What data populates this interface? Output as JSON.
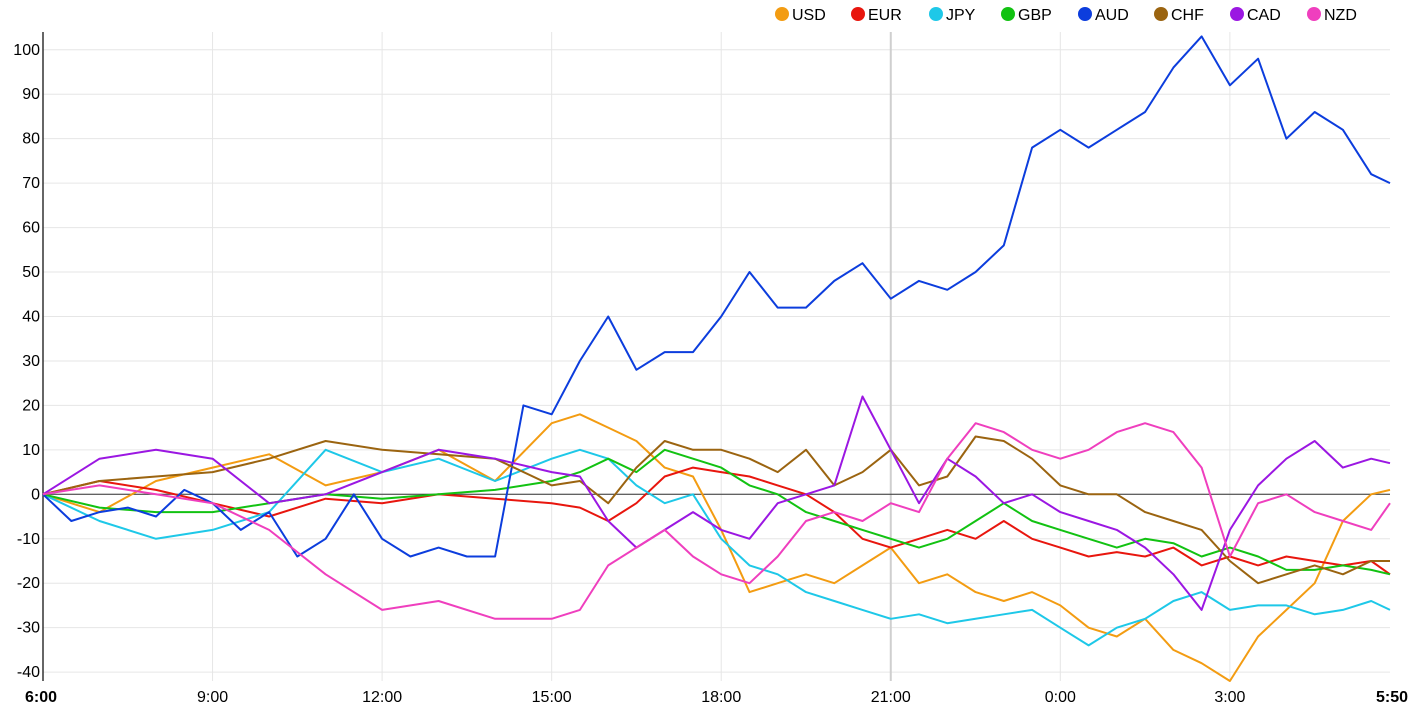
{
  "chart_data": {
    "type": "line",
    "title": "",
    "xlabel": "",
    "ylabel": "",
    "ylim": [
      -42,
      104
    ],
    "yticks": [
      100,
      90,
      80,
      70,
      60,
      50,
      40,
      30,
      20,
      10,
      0,
      -10,
      -20,
      -30,
      -40
    ],
    "xlim": [
      "6:00",
      "5:50"
    ],
    "xticks": [
      "6:00",
      "9:00",
      "12:00",
      "15:00",
      "18:00",
      "21:00",
      "0:00",
      "3:00",
      "5:50"
    ],
    "x_tick_hours": [
      0,
      3,
      6,
      9,
      12,
      15,
      18,
      21,
      23.833
    ],
    "day_boundary_hour": 15,
    "grid": true,
    "zero_line": true,
    "legend_position": "top-right",
    "series": [
      {
        "name": "USD",
        "color": "#f39c12",
        "x": [
          0,
          1,
          2,
          3,
          4,
          5,
          6,
          7,
          8,
          9,
          9.5,
          10,
          10.5,
          11,
          11.5,
          12,
          12.5,
          13,
          13.5,
          14,
          14.5,
          15,
          15.5,
          16,
          16.5,
          17,
          17.5,
          18,
          18.5,
          19,
          19.5,
          20,
          20.5,
          21,
          21.5,
          22,
          22.5,
          23,
          23.5,
          23.833
        ],
        "values": [
          0,
          -4,
          3,
          6,
          9,
          2,
          5,
          10,
          3,
          16,
          18,
          15,
          12,
          6,
          4,
          -8,
          -22,
          -20,
          -18,
          -20,
          -16,
          -12,
          -20,
          -18,
          -22,
          -24,
          -22,
          -25,
          -30,
          -32,
          -28,
          -35,
          -38,
          -42,
          -32,
          -26,
          -20,
          -6,
          0,
          1
        ]
      },
      {
        "name": "EUR",
        "color": "#e8160e",
        "x": [
          0,
          1,
          2,
          3,
          4,
          5,
          6,
          7,
          8,
          9,
          9.5,
          10,
          10.5,
          11,
          11.5,
          12,
          12.5,
          13,
          13.5,
          14,
          14.5,
          15,
          15.5,
          16,
          16.5,
          17,
          17.5,
          18,
          18.5,
          19,
          19.5,
          20,
          20.5,
          21,
          21.5,
          22,
          22.5,
          23,
          23.5,
          23.833
        ],
        "values": [
          0,
          3,
          1,
          -2,
          -5,
          -1,
          -2,
          0,
          -1,
          -2,
          -3,
          -6,
          -2,
          4,
          6,
          5,
          4,
          2,
          0,
          -4,
          -10,
          -12,
          -10,
          -8,
          -10,
          -6,
          -10,
          -12,
          -14,
          -13,
          -14,
          -12,
          -16,
          -14,
          -16,
          -14,
          -15,
          -16,
          -15,
          -18
        ]
      },
      {
        "name": "JPY",
        "color": "#1ec8e8",
        "x": [
          0,
          1,
          2,
          3,
          4,
          5,
          6,
          7,
          8,
          9,
          9.5,
          10,
          10.5,
          11,
          11.5,
          12,
          12.5,
          13,
          13.5,
          14,
          14.5,
          15,
          15.5,
          16,
          16.5,
          17,
          17.5,
          18,
          18.5,
          19,
          19.5,
          20,
          20.5,
          21,
          21.5,
          22,
          22.5,
          23,
          23.5,
          23.833
        ],
        "values": [
          0,
          -6,
          -10,
          -8,
          -4,
          10,
          5,
          8,
          3,
          8,
          10,
          8,
          2,
          -2,
          0,
          -10,
          -16,
          -18,
          -22,
          -24,
          -26,
          -28,
          -27,
          -29,
          -28,
          -27,
          -26,
          -30,
          -34,
          -30,
          -28,
          -24,
          -22,
          -26,
          -25,
          -25,
          -27,
          -26,
          -24,
          -26
        ]
      },
      {
        "name": "GBP",
        "color": "#12c212",
        "x": [
          0,
          1,
          2,
          3,
          4,
          5,
          6,
          7,
          8,
          9,
          9.5,
          10,
          10.5,
          11,
          11.5,
          12,
          12.5,
          13,
          13.5,
          14,
          14.5,
          15,
          15.5,
          16,
          16.5,
          17,
          17.5,
          18,
          18.5,
          19,
          19.5,
          20,
          20.5,
          21,
          21.5,
          22,
          22.5,
          23,
          23.5,
          23.833
        ],
        "values": [
          0,
          -3,
          -4,
          -4,
          -2,
          0,
          -1,
          0,
          1,
          3,
          5,
          8,
          5,
          10,
          8,
          6,
          2,
          0,
          -4,
          -6,
          -8,
          -10,
          -12,
          -10,
          -6,
          -2,
          -6,
          -8,
          -10,
          -12,
          -10,
          -11,
          -14,
          -12,
          -14,
          -17,
          -17,
          -16,
          -17,
          -18
        ]
      },
      {
        "name": "AUD",
        "color": "#0c3ddd",
        "x": [
          0,
          0.5,
          1,
          1.5,
          2,
          2.5,
          3,
          3.5,
          4,
          4.5,
          5,
          5.5,
          6,
          6.5,
          7,
          7.5,
          8,
          8.5,
          9,
          9.5,
          10,
          10.5,
          11,
          11.5,
          12,
          12.5,
          13,
          13.5,
          14,
          14.5,
          15,
          15.5,
          16,
          16.5,
          17,
          17.5,
          18,
          18.5,
          19,
          19.5,
          20,
          20.5,
          21,
          21.5,
          22,
          22.5,
          23,
          23.5,
          23.833
        ],
        "values": [
          0,
          -6,
          -4,
          -3,
          -5,
          1,
          -2,
          -8,
          -4,
          -14,
          -10,
          0,
          -10,
          -14,
          -12,
          -14,
          -14,
          20,
          18,
          30,
          40,
          28,
          32,
          32,
          40,
          50,
          42,
          42,
          48,
          52,
          44,
          48,
          46,
          50,
          56,
          78,
          82,
          78,
          82,
          86,
          96,
          103,
          92,
          98,
          80,
          86,
          82,
          72,
          70
        ]
      },
      {
        "name": "CHF",
        "color": "#9b6410",
        "x": [
          0,
          1,
          2,
          3,
          4,
          5,
          6,
          7,
          8,
          9,
          9.5,
          10,
          10.5,
          11,
          11.5,
          12,
          12.5,
          13,
          13.5,
          14,
          14.5,
          15,
          15.5,
          16,
          16.5,
          17,
          17.5,
          18,
          18.5,
          19,
          19.5,
          20,
          20.5,
          21,
          21.5,
          22,
          22.5,
          23,
          23.5,
          23.833
        ],
        "values": [
          0,
          3,
          4,
          5,
          8,
          12,
          10,
          9,
          8,
          2,
          3,
          -2,
          6,
          12,
          10,
          10,
          8,
          5,
          10,
          2,
          5,
          10,
          2,
          4,
          13,
          12,
          8,
          2,
          0,
          0,
          -4,
          -6,
          -8,
          -15,
          -20,
          -18,
          -16,
          -18,
          -15,
          -15
        ]
      },
      {
        "name": "CAD",
        "color": "#9b17e2",
        "x": [
          0,
          1,
          2,
          3,
          4,
          5,
          6,
          7,
          8,
          9,
          9.5,
          10,
          10.5,
          11,
          11.5,
          12,
          12.5,
          13,
          13.5,
          14,
          14.5,
          15,
          15.5,
          16,
          16.5,
          17,
          17.5,
          18,
          18.5,
          19,
          19.5,
          20,
          20.5,
          21,
          21.5,
          22,
          22.5,
          23,
          23.5,
          23.833
        ],
        "values": [
          0,
          8,
          10,
          8,
          -2,
          0,
          5,
          10,
          8,
          5,
          4,
          -6,
          -12,
          -8,
          -4,
          -8,
          -10,
          -2,
          0,
          2,
          22,
          10,
          -2,
          8,
          4,
          -2,
          0,
          -4,
          -6,
          -8,
          -12,
          -18,
          -26,
          -8,
          2,
          8,
          12,
          6,
          8,
          7
        ]
      },
      {
        "name": "NZD",
        "color": "#ef3fbe",
        "x": [
          0,
          1,
          2,
          3,
          4,
          5,
          6,
          7,
          8,
          9,
          9.5,
          10,
          10.5,
          11,
          11.5,
          12,
          12.5,
          13,
          13.5,
          14,
          14.5,
          15,
          15.5,
          16,
          16.5,
          17,
          17.5,
          18,
          18.5,
          19,
          19.5,
          20,
          20.5,
          21,
          21.5,
          22,
          22.5,
          23,
          23.5,
          23.833
        ],
        "values": [
          0,
          2,
          0,
          -2,
          -8,
          -18,
          -26,
          -24,
          -28,
          -28,
          -26,
          -16,
          -12,
          -8,
          -14,
          -18,
          -20,
          -14,
          -6,
          -4,
          -6,
          -2,
          -4,
          8,
          16,
          14,
          10,
          8,
          10,
          14,
          16,
          14,
          6,
          -14,
          -2,
          0,
          -4,
          -6,
          -8,
          -2
        ]
      }
    ]
  }
}
